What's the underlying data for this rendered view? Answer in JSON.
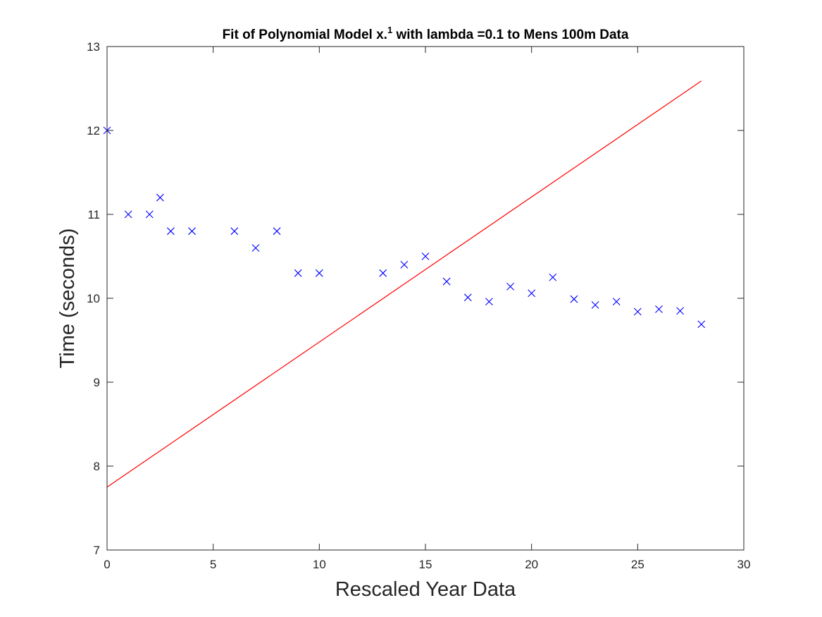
{
  "chart_data": {
    "type": "scatter",
    "title_main": "Fit of Polynomial Model x.",
    "title_sup": "1",
    "title_rest": " with lambda =0.1 to Mens 100m Data",
    "xlabel": "Rescaled Year Data",
    "ylabel": "Time (seconds)",
    "xlim": [
      0,
      30
    ],
    "ylim": [
      7,
      13
    ],
    "xticks": [
      0,
      5,
      10,
      15,
      20,
      25,
      30
    ],
    "yticks": [
      7,
      8,
      9,
      10,
      11,
      12,
      13
    ],
    "grid": false,
    "series": [
      {
        "kind": "scatter",
        "marker": "x",
        "color": "#0000ff",
        "x": [
          0,
          1,
          2,
          2.5,
          3,
          4,
          6,
          7,
          8,
          9,
          10,
          13,
          14,
          15,
          16,
          17,
          18,
          19,
          20,
          21,
          22,
          23,
          24,
          25,
          26,
          27,
          28
        ],
        "y": [
          12.0,
          11.0,
          11.0,
          11.2,
          10.8,
          10.8,
          10.8,
          10.6,
          10.8,
          10.3,
          10.3,
          10.3,
          10.4,
          10.5,
          10.2,
          10.01,
          9.96,
          10.14,
          10.06,
          10.25,
          9.99,
          9.92,
          9.96,
          9.84,
          9.87,
          9.85,
          9.69
        ]
      },
      {
        "kind": "line",
        "color": "#ff0000",
        "x": [
          0,
          28
        ],
        "y": [
          7.75,
          12.59
        ]
      }
    ]
  }
}
